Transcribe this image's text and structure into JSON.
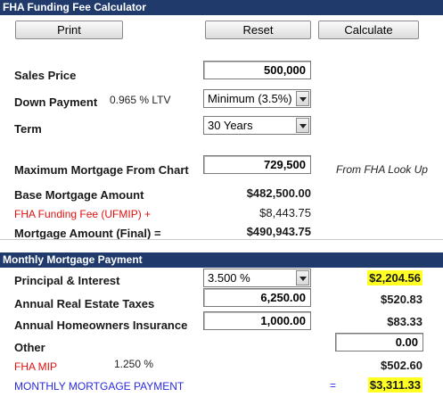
{
  "header": {
    "title": "FHA Funding Fee Calculator"
  },
  "toolbar": {
    "print": "Print",
    "reset": "Reset",
    "calculate": "Calculate"
  },
  "sales_price": {
    "label": "Sales Price",
    "value": "500,000"
  },
  "down_payment": {
    "label": "Down Payment",
    "ltv": "0.965 % LTV",
    "selected": "Minimum (3.5%)"
  },
  "term": {
    "label": "Term",
    "selected": "30 Years"
  },
  "max_mortgage": {
    "label": "Maximum Mortgage From Chart",
    "value": "729,500",
    "note": "From FHA Look Up"
  },
  "base_mortgage": {
    "label": "Base Mortgage Amount",
    "value": "$482,500.00"
  },
  "funding_fee": {
    "label": "FHA Funding Fee (UFMIP) +",
    "value": "$8,443.75"
  },
  "mortgage_final": {
    "label": "Mortgage Amount (Final) =",
    "value": "$490,943.75"
  },
  "monthly_header": {
    "title": "Monthly Mortgage Payment"
  },
  "principal_interest": {
    "label": "Principal & Interest",
    "rate": "3.500 %",
    "value": "$2,204.56"
  },
  "taxes": {
    "label": "Annual Real Estate Taxes",
    "input": "6,250.00",
    "value": "$520.83"
  },
  "insurance": {
    "label": "Annual Homeowners Insurance",
    "input": "1,000.00",
    "value": "$83.33"
  },
  "other": {
    "label": "Other",
    "input": "0.00"
  },
  "fha_mip": {
    "label": "FHA MIP",
    "rate": "1.250 %",
    "value": "$502.60"
  },
  "monthly_payment": {
    "label": "MONTHLY MORTGAGE PAYMENT",
    "eq": "=",
    "value": "$3,311.33"
  },
  "colors": {
    "header_bg": "#1f3a6b",
    "red": "#e01010",
    "blue": "#2a2ae0",
    "highlight": "#ffff22"
  }
}
